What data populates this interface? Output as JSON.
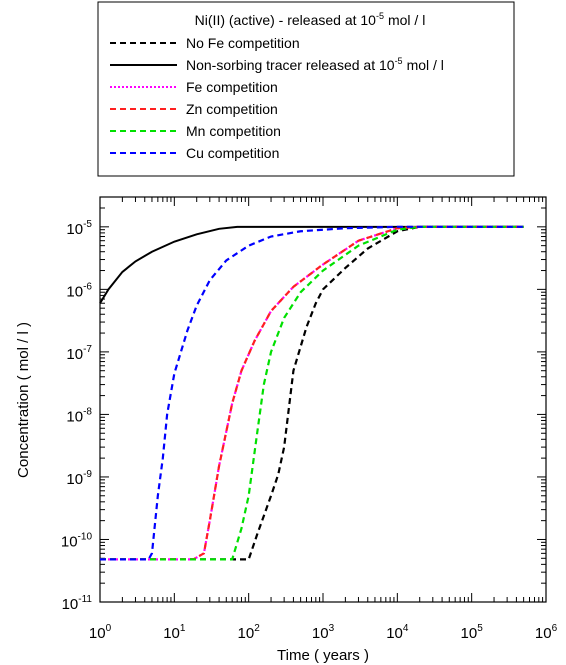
{
  "chart_data": {
    "type": "line",
    "legend": {
      "placement": "top",
      "title": "Ni(II) (active) - released at 10",
      "title_exp": "-5",
      "title_unit": "mol / l"
    },
    "xlabel": "Time ( years )",
    "ylabel": "Concentration ( mol / l )",
    "x_scale": "log",
    "y_scale": "log",
    "xlim": [
      1,
      1000000
    ],
    "ylim": [
      1e-11,
      3e-05
    ],
    "x_ticks": [
      {
        "value": 1,
        "base": "10",
        "exp": "0"
      },
      {
        "value": 10,
        "base": "10",
        "exp": "1"
      },
      {
        "value": 100,
        "base": "10",
        "exp": "2"
      },
      {
        "value": 1000,
        "base": "10",
        "exp": "3"
      },
      {
        "value": 10000,
        "base": "10",
        "exp": "4"
      },
      {
        "value": 100000,
        "base": "10",
        "exp": "5"
      },
      {
        "value": 1000000,
        "base": "10",
        "exp": "6"
      }
    ],
    "y_ticks": [
      {
        "value": 1e-11,
        "base": "10",
        "exp": "-11"
      },
      {
        "value": 1e-10,
        "base": "10",
        "exp": "-10"
      },
      {
        "value": 1e-09,
        "base": "10",
        "exp": "-9"
      },
      {
        "value": 1e-08,
        "base": "10",
        "exp": "-8"
      },
      {
        "value": 1e-07,
        "base": "10",
        "exp": "-7"
      },
      {
        "value": 1e-06,
        "base": "10",
        "exp": "-6"
      },
      {
        "value": 1e-05,
        "base": "10",
        "exp": "-5"
      }
    ],
    "grid": false,
    "series": [
      {
        "name": "No Fe competition",
        "color": "#000000",
        "dash": "dashed",
        "points": [
          [
            1,
            4.8e-11
          ],
          [
            100,
            4.8e-11
          ],
          [
            130,
            1.2e-10
          ],
          [
            200,
            5e-10
          ],
          [
            250,
            1.1e-09
          ],
          [
            300,
            3e-09
          ],
          [
            400,
            5e-08
          ],
          [
            600,
            2.5e-07
          ],
          [
            800,
            6e-07
          ],
          [
            1000,
            1e-06
          ],
          [
            2000,
            2.2e-06
          ],
          [
            4000,
            4.5e-06
          ],
          [
            10000,
            8.5e-06
          ],
          [
            20000,
            1e-05
          ],
          [
            500000,
            1e-05
          ]
        ]
      },
      {
        "name": "Non-sorbing tracer released at 10",
        "name_exp": "-5",
        "name_unit": "mol / l",
        "color": "#000000",
        "dash": "solid",
        "points": [
          [
            1,
            6e-07
          ],
          [
            1.3,
            1e-06
          ],
          [
            2,
            1.9e-06
          ],
          [
            3,
            2.8e-06
          ],
          [
            5,
            4e-06
          ],
          [
            10,
            5.8e-06
          ],
          [
            20,
            7.6e-06
          ],
          [
            40,
            9.3e-06
          ],
          [
            70,
            1e-05
          ],
          [
            500000,
            1e-05
          ]
        ]
      },
      {
        "name": "Fe competition",
        "color": "#ff00ff",
        "dash": "dotted",
        "points": [
          [
            1,
            4.8e-11
          ],
          [
            18,
            4.8e-11
          ],
          [
            25,
            6e-11
          ],
          [
            30,
            2e-10
          ],
          [
            40,
            1.5e-09
          ],
          [
            60,
            1.5e-08
          ],
          [
            80,
            5e-08
          ],
          [
            120,
            1.5e-07
          ],
          [
            200,
            4.5e-07
          ],
          [
            400,
            1.1e-06
          ],
          [
            1000,
            2.5e-06
          ],
          [
            3000,
            6e-06
          ],
          [
            10000,
            9.5e-06
          ],
          [
            20000,
            1e-05
          ],
          [
            500000,
            1e-05
          ]
        ]
      },
      {
        "name": "Zn competition",
        "color": "#ff2020",
        "dash": "dashed",
        "points": [
          [
            1,
            4.8e-11
          ],
          [
            18,
            4.8e-11
          ],
          [
            25,
            6e-11
          ],
          [
            30,
            2e-10
          ],
          [
            40,
            1.5e-09
          ],
          [
            60,
            1.5e-08
          ],
          [
            80,
            5e-08
          ],
          [
            120,
            1.5e-07
          ],
          [
            200,
            4.5e-07
          ],
          [
            400,
            1.1e-06
          ],
          [
            1000,
            2.5e-06
          ],
          [
            3000,
            6e-06
          ],
          [
            10000,
            9.5e-06
          ],
          [
            20000,
            1e-05
          ],
          [
            500000,
            1e-05
          ]
        ]
      },
      {
        "name": "Mn competition",
        "color": "#00e000",
        "dash": "dashed",
        "points": [
          [
            1,
            4.8e-11
          ],
          [
            60,
            4.8e-11
          ],
          [
            80,
            1.5e-10
          ],
          [
            100,
            5e-10
          ],
          [
            130,
            5e-09
          ],
          [
            160,
            3e-08
          ],
          [
            200,
            1e-07
          ],
          [
            300,
            3.5e-07
          ],
          [
            500,
            9e-07
          ],
          [
            1000,
            2e-06
          ],
          [
            3000,
            5e-06
          ],
          [
            10000,
            9e-06
          ],
          [
            20000,
            1e-05
          ],
          [
            500000,
            1e-05
          ]
        ]
      },
      {
        "name": "Cu competition",
        "color": "#0000ff",
        "dash": "dashed",
        "points": [
          [
            1,
            4.8e-11
          ],
          [
            4.5,
            4.8e-11
          ],
          [
            5,
            6e-11
          ],
          [
            6,
            5e-10
          ],
          [
            7,
            2e-09
          ],
          [
            8,
            1e-08
          ],
          [
            10,
            4.5e-08
          ],
          [
            15,
            2.2e-07
          ],
          [
            20,
            5.5e-07
          ],
          [
            30,
            1.4e-06
          ],
          [
            50,
            2.9e-06
          ],
          [
            100,
            5e-06
          ],
          [
            200,
            7e-06
          ],
          [
            500,
            8.5e-06
          ],
          [
            2000,
            9.5e-06
          ],
          [
            10000,
            1e-05
          ],
          [
            500000,
            1e-05
          ]
        ]
      }
    ]
  }
}
